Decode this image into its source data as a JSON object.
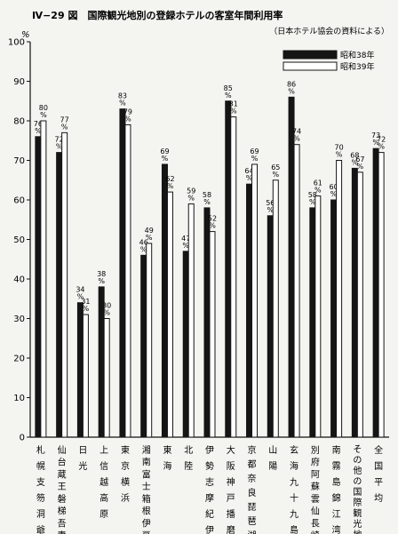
{
  "chart_data": {
    "type": "bar",
    "title": "Ⅳ−29 図　国際観光地別の登録ホテルの客室年間利用率",
    "subtitle": "（日本ホテル協会の資料による）",
    "y_unit": "%",
    "ylim": [
      0,
      100
    ],
    "yticks": [
      "0",
      "10",
      "20",
      "30",
      "40",
      "50",
      "60",
      "70",
      "80",
      "90",
      "100"
    ],
    "legend_position": "top-right",
    "categories": [
      "札幌支笏洞爺",
      "仙台蔵王磐梯吾妻",
      "日光",
      "上信越高原",
      "東京横浜",
      "湘南富士箱根伊豆",
      "東海",
      "北陸",
      "伊勢志摩紀伊",
      "大阪神戸播磨",
      "京都奈良琵琶湖",
      "山陽",
      "玄海九十九島",
      "別府阿蘇雲仙長崎",
      "南霧島錦江湾",
      "その他の国際観光地",
      "全国平均"
    ],
    "series": [
      {
        "name": "昭和38年",
        "values": [
          76,
          72,
          34,
          38,
          83,
          46,
          69,
          47,
          58,
          85,
          64,
          56,
          86,
          58,
          60,
          68,
          73
        ]
      },
      {
        "name": "昭和39年",
        "values": [
          80,
          77,
          31,
          30,
          79,
          49,
          62,
          59,
          52,
          81,
          69,
          65,
          74,
          61,
          70,
          67,
          72
        ]
      }
    ],
    "colors": {
      "series1": "#151515",
      "series2": "#ffffff",
      "stroke": "#151515"
    }
  }
}
